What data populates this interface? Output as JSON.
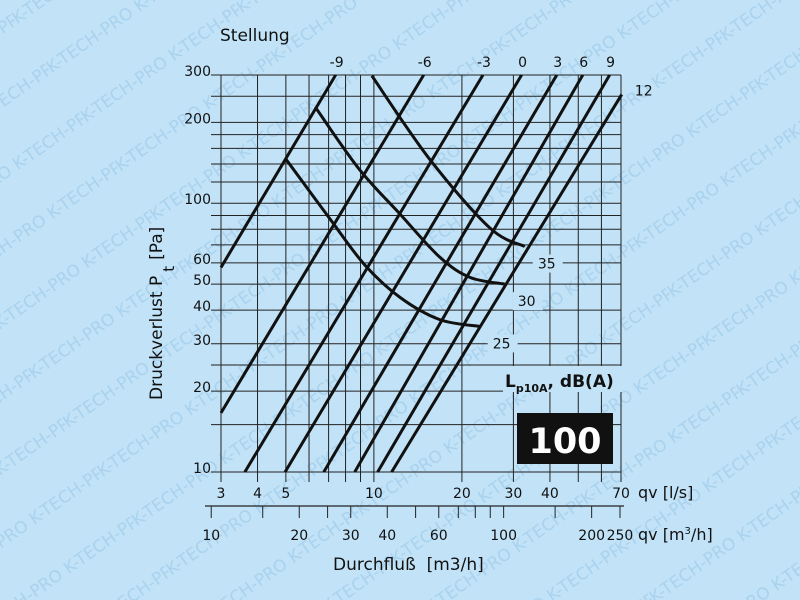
{
  "watermark": "K-TECH-PRO",
  "colors": {
    "background": "#c2e3f7",
    "lines": "#111111",
    "badge_bg": "#111111",
    "badge_text": "#ffffff",
    "watermark": "#a9d2ee"
  },
  "chart_data": {
    "type": "line",
    "x_scale": "log",
    "y_scale": "log",
    "xlim": [
      3,
      70
    ],
    "ylim": [
      10,
      300
    ],
    "grid": true,
    "stellung_label": "Stellung",
    "ylabel_main": "Druckverlust P",
    "ylabel_sub": "t",
    "ylabel_unit": "[Pa]",
    "xlabel": "Durchfluß  [m3/h]",
    "x_axis_ls_label": "qv [l/s]",
    "x_axis_m3h_label_pre": "qv [m",
    "x_axis_m3h_label_sup": "3",
    "x_axis_m3h_label_post": "/h]",
    "x_ticks_ls": [
      "3",
      "4",
      "5",
      "10",
      "20",
      "30",
      "40",
      "70"
    ],
    "x_ticks_m3h": [
      "10",
      "20",
      "30",
      "40",
      "60",
      "100",
      "200",
      "250"
    ],
    "y_ticks": [
      "10",
      "20",
      "30",
      "40",
      "50",
      "60",
      "100",
      "200",
      "300"
    ],
    "x_grid_ls": [
      3,
      4,
      5,
      6,
      7,
      8,
      9,
      10,
      20,
      30,
      40,
      50,
      60,
      70
    ],
    "y_grid": [
      10,
      15,
      20,
      25,
      30,
      40,
      50,
      60,
      70,
      80,
      90,
      100,
      120,
      140,
      160,
      180,
      200,
      250,
      300
    ],
    "noise_label_main": "L",
    "noise_label_sub": "p10A",
    "noise_label_unit": ", dB(A)",
    "size_badge": "100",
    "stellung_series": [
      {
        "name": "-9",
        "points": [
          [
            3,
            57.7
          ],
          [
            7.4,
            300
          ]
        ]
      },
      {
        "name": "-6",
        "points": [
          [
            3,
            16.6
          ],
          [
            14.8,
            300
          ]
        ]
      },
      {
        "name": "-3",
        "points": [
          [
            3.62,
            10
          ],
          [
            23.6,
            300
          ]
        ]
      },
      {
        "name": "0",
        "points": [
          [
            4.97,
            10
          ],
          [
            32.0,
            300
          ]
        ]
      },
      {
        "name": "3",
        "points": [
          [
            6.74,
            10
          ],
          [
            42.2,
            300
          ]
        ]
      },
      {
        "name": "6",
        "points": [
          [
            8.6,
            10
          ],
          [
            51.8,
            300
          ]
        ]
      },
      {
        "name": "9",
        "points": [
          [
            10.3,
            10
          ],
          [
            64.0,
            300
          ]
        ]
      },
      {
        "name": "12",
        "points": [
          [
            11.5,
            10
          ],
          [
            70.4,
            254
          ]
        ]
      }
    ],
    "noise_series": [
      {
        "name": "35",
        "points": [
          [
            9.84,
            298
          ],
          [
            15.5,
            146
          ],
          [
            24.9,
            81
          ],
          [
            32.8,
            69
          ]
        ]
      },
      {
        "name": "30",
        "points": [
          [
            6.3,
            228
          ],
          [
            8.9,
            134
          ],
          [
            12.3,
            91
          ],
          [
            16.8,
            63
          ],
          [
            21.3,
            53
          ],
          [
            28.0,
            50
          ]
        ]
      },
      {
        "name": "25",
        "points": [
          [
            5.0,
            146
          ],
          [
            7.1,
            87
          ],
          [
            9.3,
            59
          ],
          [
            12.3,
            44.6
          ],
          [
            16.8,
            36.9
          ],
          [
            23.0,
            34.8
          ]
        ]
      }
    ]
  }
}
